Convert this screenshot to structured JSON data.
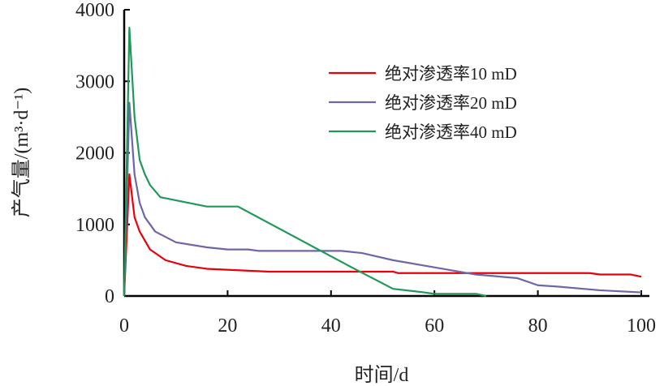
{
  "chart_data": {
    "type": "line",
    "title": "",
    "xlabel": "时间/d",
    "ylabel": "产气量/(m³·d⁻¹)",
    "xlim": [
      0,
      100
    ],
    "ylim": [
      0,
      4000
    ],
    "xticks": [
      "0",
      "20",
      "40",
      "60",
      "80",
      "100"
    ],
    "yticks": [
      "0",
      "1000",
      "2000",
      "3000",
      "4000"
    ],
    "grid": false,
    "legend_position": "top-right",
    "series": [
      {
        "name": "绝对渗透率10 mD",
        "color": "#e8000b",
        "x": [
          0,
          1,
          2,
          3,
          5,
          8,
          12,
          16,
          22,
          28,
          52,
          53,
          90,
          92,
          98,
          100
        ],
        "y": [
          0,
          1700,
          1100,
          900,
          650,
          500,
          420,
          380,
          360,
          340,
          340,
          320,
          320,
          300,
          300,
          270
        ]
      },
      {
        "name": "绝对渗透率20 mD",
        "color": "#6b67a8",
        "x": [
          0,
          1,
          2,
          3,
          4,
          6,
          10,
          16,
          20,
          24,
          26,
          42,
          46,
          52,
          60,
          68,
          76,
          80,
          84,
          92,
          100
        ],
        "y": [
          0,
          2700,
          1700,
          1300,
          1100,
          900,
          750,
          680,
          650,
          650,
          630,
          630,
          600,
          500,
          400,
          300,
          250,
          150,
          130,
          80,
          50
        ]
      },
      {
        "name": "绝对渗透率40 mD",
        "color": "#20985a",
        "x": [
          0,
          1,
          2,
          3,
          4,
          5,
          7,
          16,
          22,
          44,
          52,
          58,
          60,
          68,
          70
        ],
        "y": [
          0,
          3750,
          2500,
          1900,
          1700,
          1550,
          1380,
          1250,
          1250,
          400,
          100,
          50,
          30,
          30,
          0
        ]
      }
    ]
  }
}
